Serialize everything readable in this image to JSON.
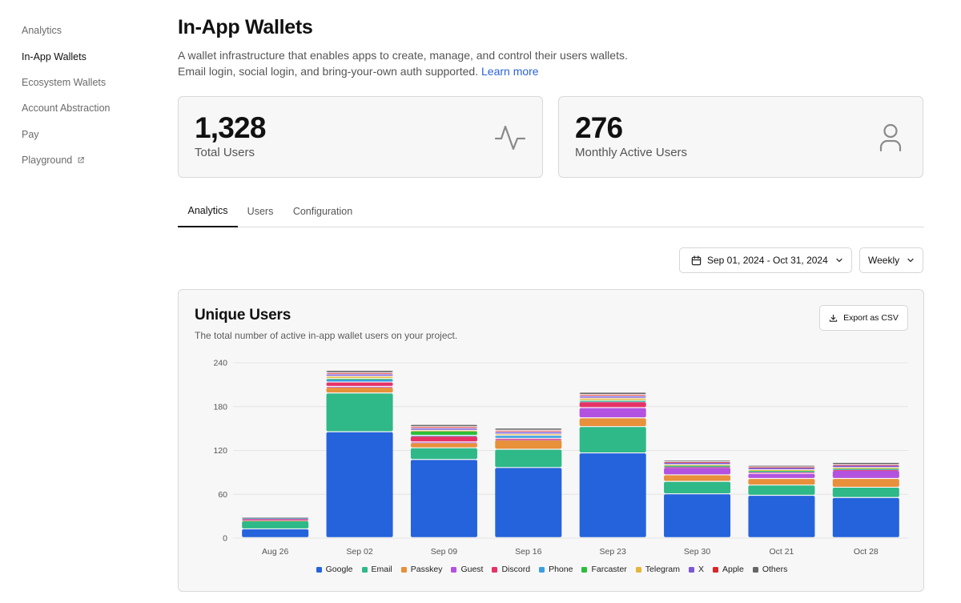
{
  "sidebar": {
    "items": [
      {
        "label": "Analytics",
        "active": false
      },
      {
        "label": "In-App Wallets",
        "active": true
      },
      {
        "label": "Ecosystem Wallets",
        "active": false
      },
      {
        "label": "Account Abstraction",
        "active": false
      },
      {
        "label": "Pay",
        "active": false
      },
      {
        "label": "Playground",
        "active": false,
        "external": true
      }
    ]
  },
  "header": {
    "title": "In-App Wallets",
    "description_line1": "A wallet infrastructure that enables apps to create, manage, and control their users wallets.",
    "description_line2": "Email login, social login, and bring-your-own auth supported.",
    "learn_more": "Learn more"
  },
  "stats": {
    "total_users": {
      "value": "1,328",
      "label": "Total Users",
      "icon": "activity-icon"
    },
    "monthly_active": {
      "value": "276",
      "label": "Monthly Active Users",
      "icon": "user-icon"
    }
  },
  "tabs": [
    {
      "label": "Analytics",
      "active": true
    },
    {
      "label": "Users",
      "active": false
    },
    {
      "label": "Configuration",
      "active": false
    }
  ],
  "filters": {
    "date_range": "Sep 01, 2024 - Oct 31, 2024",
    "period": "Weekly"
  },
  "chart_card": {
    "title": "Unique Users",
    "subtitle": "The total number of active in-app wallet users on your project.",
    "export_label": "Export as CSV"
  },
  "chart_data": {
    "type": "bar",
    "stacked": true,
    "title": "Unique Users",
    "categories": [
      "Aug 26",
      "Sep 02",
      "Sep 09",
      "Sep 16",
      "Sep 23",
      "Sep 30",
      "Oct 21",
      "Oct 28"
    ],
    "ylim": [
      0,
      240
    ],
    "yticks": [
      0,
      60,
      120,
      180,
      240
    ],
    "grid": true,
    "legend_position": "bottom",
    "series": [
      {
        "name": "Google",
        "color": "#2563dc",
        "values": [
          12,
          145,
          107,
          96,
          116,
          60,
          58,
          55
        ]
      },
      {
        "name": "Email",
        "color": "#2fb888",
        "values": [
          11,
          53,
          16,
          25,
          36,
          17,
          14,
          14
        ]
      },
      {
        "name": "Passkey",
        "color": "#e8903a",
        "values": [
          1,
          8,
          7,
          13,
          12,
          9,
          9,
          12
        ]
      },
      {
        "name": "Guest",
        "color": "#b352e0",
        "values": [
          1,
          1,
          1,
          1,
          14,
          10,
          7,
          11
        ]
      },
      {
        "name": "Discord",
        "color": "#e63267",
        "values": [
          1,
          6,
          8,
          1,
          8,
          1,
          2,
          1
        ]
      },
      {
        "name": "Phone",
        "color": "#3a9fe0",
        "values": [
          1,
          4,
          1,
          4,
          1,
          1,
          1,
          1
        ]
      },
      {
        "name": "Farcaster",
        "color": "#2dbd3a",
        "values": [
          0,
          1,
          6,
          0,
          1,
          1,
          1,
          1
        ]
      },
      {
        "name": "Telegram",
        "color": "#e5b53b",
        "values": [
          0,
          3,
          1,
          2,
          3,
          1,
          1,
          1
        ]
      },
      {
        "name": "X",
        "color": "#7d57d6",
        "values": [
          0,
          3,
          3,
          3,
          3,
          3,
          3,
          3
        ]
      },
      {
        "name": "Apple",
        "color": "#d9262b",
        "values": [
          0,
          2,
          2,
          2,
          2,
          1,
          1,
          1
        ]
      },
      {
        "name": "Others",
        "color": "#666666",
        "values": [
          1,
          3,
          3,
          3,
          3,
          2,
          2,
          3
        ]
      }
    ]
  }
}
